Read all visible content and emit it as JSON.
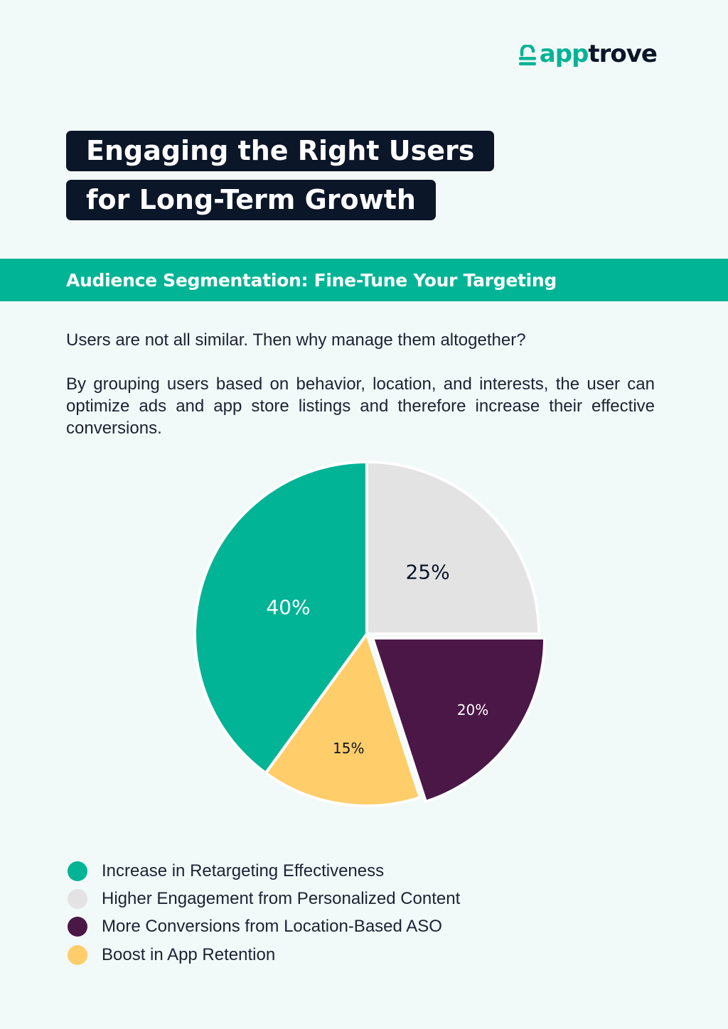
{
  "brand": {
    "name_part1": "app",
    "name_part2": "trove",
    "colors": {
      "primary": "#00b495",
      "dark": "#0b1628"
    },
    "icon": "lock-logo-icon"
  },
  "title": {
    "line1": "Engaging the Right Users",
    "line2": "for Long-Term Growth"
  },
  "section": {
    "heading": "Audience Segmentation: Fine-Tune Your Targeting"
  },
  "content": {
    "intro": "Users are not all similar. Then why manage them altogether?",
    "paragraph": "By grouping users based on behavior, location, and interests, the user can optimize ads and app store listings and therefore increase their effective conversions."
  },
  "chart_data": {
    "type": "pie",
    "legend_position": "bottom-left",
    "slices": [
      {
        "label": "Increase in Retargeting Effectiveness",
        "value": 40,
        "value_label": "40%",
        "color": "#00b495",
        "text_color": "#ffffff"
      },
      {
        "label": "Higher Engagement from Personalized Content",
        "value": 25,
        "value_label": "25%",
        "color": "#e3e3e3",
        "text_color": "#0b1628"
      },
      {
        "label": "More Conversions from Location-Based ASO",
        "value": 20,
        "value_label": "20%",
        "color": "#4a1746",
        "text_color": "#ffffff"
      },
      {
        "label": "Boost in App Retention",
        "value": 15,
        "value_label": "15%",
        "color": "#ffcd69",
        "text_color": "#0b1628"
      }
    ]
  }
}
